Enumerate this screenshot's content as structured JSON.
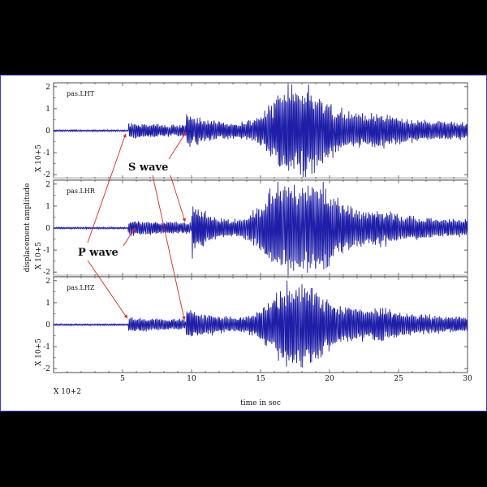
{
  "chart_data": {
    "type": "line",
    "xlabel": "time in sec",
    "x_multiplier": "X 10+2",
    "ylabel": "displacement amplitude",
    "xlim": [
      0,
      30
    ],
    "x_ticks": [
      "5",
      "10",
      "15",
      "20",
      "25",
      "30"
    ],
    "colors": {
      "trace": "#1e1ea8",
      "arrow": "#e0281e",
      "frame": "#3b3bd6"
    },
    "panels": [
      {
        "name": "pas.LHT",
        "y_ticks": [
          "2",
          "1",
          "0",
          "-1",
          "-2"
        ],
        "ylim": [
          -2,
          2
        ],
        "y_multiplier": "X 10+5",
        "p_arrival": 5.4,
        "s_arrival": 9.6,
        "max_amplitude": 1.9
      },
      {
        "name": "pas.LHR",
        "y_ticks": [
          "2",
          "1",
          "0",
          "-1",
          "-2"
        ],
        "ylim": [
          -2,
          2
        ],
        "y_multiplier": "X 10+5",
        "p_arrival": 5.4,
        "s_arrival": 10.0,
        "max_amplitude": 1.9
      },
      {
        "name": "pas.LHZ",
        "y_ticks": [
          "2",
          "1",
          "0",
          "-1",
          "-2"
        ],
        "ylim": [
          -2,
          2
        ],
        "y_multiplier": "X 10+5",
        "p_arrival": 5.4,
        "s_arrival": 9.6,
        "max_amplitude": 1.8
      }
    ],
    "annotations": [
      {
        "text": "S wave",
        "target": "S arrival"
      },
      {
        "text": "P wave",
        "target": "P arrival"
      }
    ]
  }
}
